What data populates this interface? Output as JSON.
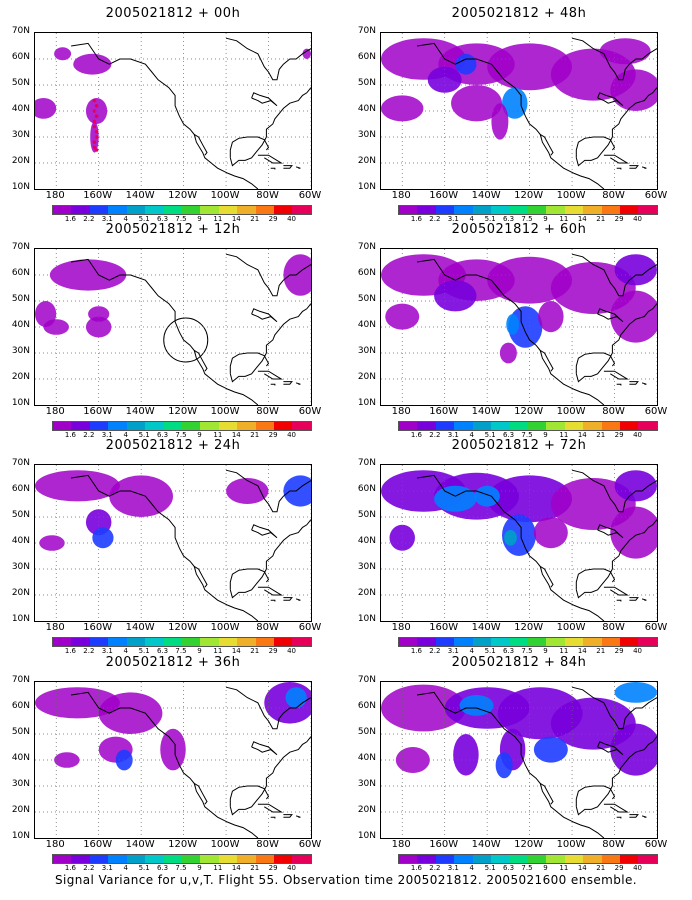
{
  "panels": [
    {
      "title": "2005021812 + 00h"
    },
    {
      "title": "2005021812 + 48h"
    },
    {
      "title": "2005021812 + 12h"
    },
    {
      "title": "2005021812 + 60h"
    },
    {
      "title": "2005021812 + 24h"
    },
    {
      "title": "2005021812 + 72h"
    },
    {
      "title": "2005021812 + 36h"
    },
    {
      "title": "2005021812 + 84h"
    }
  ],
  "lat_labels": [
    "70N",
    "60N",
    "50N",
    "40N",
    "30N",
    "20N",
    "10N"
  ],
  "lon_labels": [
    "180",
    "160W",
    "140W",
    "120W",
    "100W",
    "80W",
    "60W"
  ],
  "colorbar": {
    "labels": [
      "1.6",
      "2.2",
      "3.1",
      "4",
      "5.1",
      "6.3",
      "7.5",
      "9",
      "11",
      "14",
      "21",
      "29",
      "40"
    ],
    "colors": [
      "#a000c8",
      "#7800dc",
      "#1e3cff",
      "#0082ff",
      "#00a0c8",
      "#00c8c8",
      "#00dc82",
      "#32d232",
      "#a0e632",
      "#e6dc32",
      "#f0af28",
      "#fa7814",
      "#f00000",
      "#e6005a"
    ]
  },
  "footer": "Signal Variance for u,v,T. Flight 55. Observation time 2005021812. 2005021600 ensemble."
}
